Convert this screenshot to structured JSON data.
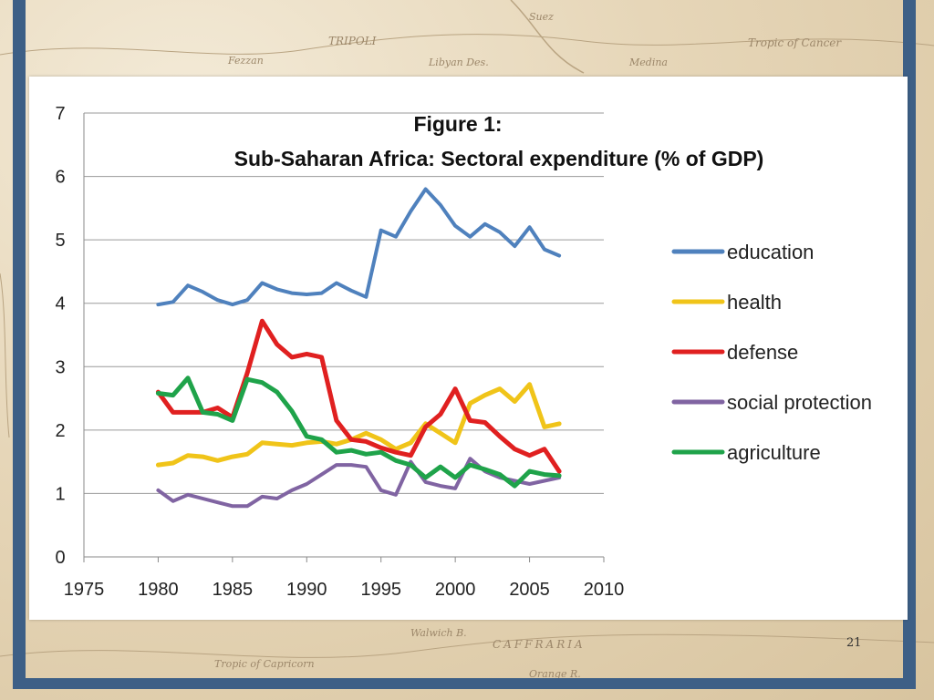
{
  "slide": {
    "page_number": "21"
  },
  "map_labels": [
    "TRIPOLI",
    "Fezzan",
    "Libyan Des.",
    "Suez",
    "Medina",
    "Tropic of Cancer",
    "CAFFRARIA",
    "Tropic of Capricorn",
    "Orange R.",
    "Walwich B."
  ],
  "chart_data": {
    "type": "line",
    "title": "Figure 1:",
    "subtitle": "Sub-Saharan Africa: Sectoral expenditure (% of GDP)",
    "xlabel": "",
    "ylabel": "",
    "xlim": [
      1975,
      2010
    ],
    "ylim": [
      0,
      7
    ],
    "x_ticks": [
      1975,
      1980,
      1985,
      1990,
      1995,
      2000,
      2005,
      2010
    ],
    "y_ticks": [
      0,
      1,
      2,
      3,
      4,
      5,
      6,
      7
    ],
    "grid": true,
    "legend_position": "right",
    "x": [
      1980,
      1981,
      1982,
      1983,
      1984,
      1985,
      1986,
      1987,
      1988,
      1989,
      1990,
      1991,
      1992,
      1993,
      1994,
      1995,
      1996,
      1997,
      1998,
      1999,
      2000,
      2001,
      2002,
      2003,
      2004,
      2005,
      2006,
      2007
    ],
    "series": [
      {
        "name": "education",
        "color": "#4f81bd",
        "values": [
          3.98,
          4.02,
          4.28,
          4.18,
          4.05,
          3.98,
          4.05,
          4.32,
          4.22,
          4.16,
          4.14,
          4.16,
          4.32,
          4.2,
          4.1,
          5.15,
          5.05,
          5.45,
          5.8,
          5.55,
          5.22,
          5.05,
          5.25,
          5.12,
          4.9,
          5.2,
          4.85,
          4.75
        ]
      },
      {
        "name": "health",
        "color": "#f0c419",
        "values": [
          1.45,
          1.48,
          1.6,
          1.58,
          1.52,
          1.58,
          1.62,
          1.8,
          1.78,
          1.76,
          1.8,
          1.82,
          1.78,
          1.85,
          1.95,
          1.85,
          1.7,
          1.8,
          2.1,
          1.95,
          1.8,
          2.42,
          2.55,
          2.65,
          2.45,
          2.72,
          2.05,
          2.1
        ]
      },
      {
        "name": "defense",
        "color": "#e02020",
        "values": [
          2.6,
          2.28,
          2.28,
          2.28,
          2.35,
          2.2,
          2.9,
          3.72,
          3.35,
          3.15,
          3.2,
          3.15,
          2.15,
          1.85,
          1.82,
          1.72,
          1.65,
          1.6,
          2.05,
          2.25,
          2.65,
          2.15,
          2.12,
          1.9,
          1.7,
          1.6,
          1.7,
          1.35
        ]
      },
      {
        "name": "social protection",
        "color": "#8064a2",
        "values": [
          1.05,
          0.88,
          0.98,
          0.92,
          0.86,
          0.8,
          0.8,
          0.95,
          0.92,
          1.05,
          1.15,
          1.3,
          1.45,
          1.45,
          1.42,
          1.05,
          0.98,
          1.5,
          1.18,
          1.12,
          1.08,
          1.55,
          1.35,
          1.25,
          1.2,
          1.15,
          1.2,
          1.25
        ]
      },
      {
        "name": "agriculture",
        "color": "#1fa34a",
        "values": [
          2.58,
          2.55,
          2.82,
          2.28,
          2.25,
          2.15,
          2.8,
          2.75,
          2.6,
          2.3,
          1.9,
          1.85,
          1.65,
          1.68,
          1.62,
          1.65,
          1.52,
          1.45,
          1.25,
          1.42,
          1.25,
          1.45,
          1.38,
          1.3,
          1.12,
          1.35,
          1.3,
          1.28
        ]
      }
    ]
  }
}
